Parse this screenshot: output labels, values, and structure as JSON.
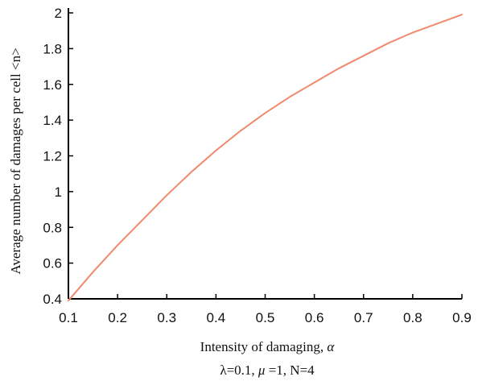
{
  "chart_data": {
    "type": "line",
    "xlabel": "Intensity of damaging,",
    "xlabel_symbol": "α",
    "ylabel": "Average number of damages per cell <n>",
    "params_prefix": "λ=0.1, ",
    "params_mu_symbol": "μ",
    "params_suffix": "=1, N=4",
    "xlim": [
      0.1,
      0.9
    ],
    "ylim": [
      0.4,
      2.0
    ],
    "x_ticks": [
      "0.1",
      "0.2",
      "0.3",
      "0.4",
      "0.5",
      "0.6",
      "0.7",
      "0.8",
      "0.9"
    ],
    "y_ticks": [
      "0.4",
      "0.6",
      "0.8",
      "1",
      "1.2",
      "1.4",
      "1.6",
      "1.8",
      "2"
    ],
    "grid": false,
    "series": [
      {
        "color": "#f08a6e",
        "x": [
          0.1,
          0.15,
          0.2,
          0.25,
          0.3,
          0.35,
          0.4,
          0.45,
          0.5,
          0.55,
          0.6,
          0.65,
          0.7,
          0.75,
          0.8,
          0.85,
          0.9
        ],
        "y": [
          0.39,
          0.55,
          0.7,
          0.84,
          0.98,
          1.11,
          1.23,
          1.34,
          1.44,
          1.53,
          1.61,
          1.69,
          1.76,
          1.83,
          1.89,
          1.94,
          1.99
        ]
      }
    ]
  }
}
